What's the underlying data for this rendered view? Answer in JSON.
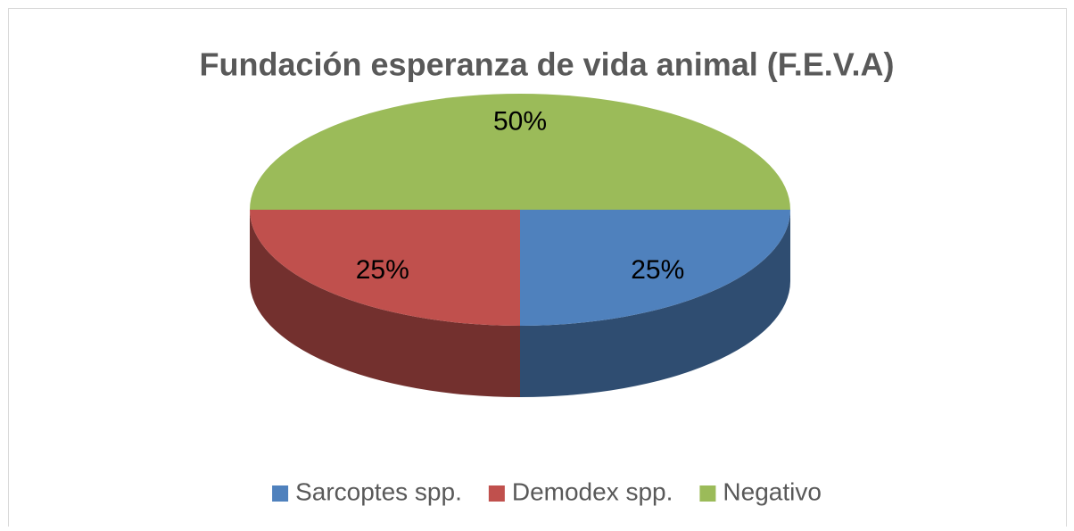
{
  "chart_data": {
    "type": "pie",
    "title": "Fundación esperanza de vida animal (F.E.V.A)",
    "categories": [
      "Sarcoptes spp.",
      "Demodex spp.",
      "Negativo"
    ],
    "values": [
      25,
      25,
      50
    ],
    "value_labels": [
      "25%",
      "25%",
      "50%"
    ],
    "colors": [
      "#4f81bd",
      "#c0504d",
      "#9bbb59"
    ],
    "legend": "bottom"
  }
}
